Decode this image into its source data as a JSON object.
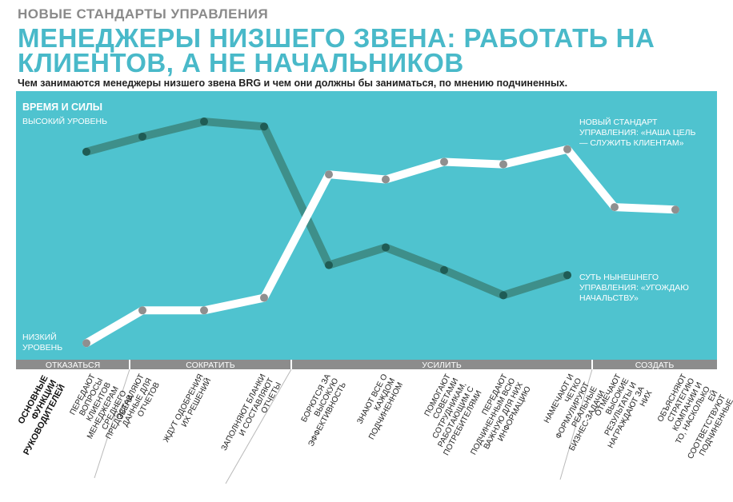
{
  "header": {
    "kicker": "НОВЫЕ СТАНДАРТЫ УПРАВЛЕНИЯ",
    "title": "МЕНЕДЖЕРЫ НИЗШЕГО ЗВЕНА: РАБОТАТЬ НА КЛИЕНТОВ, А НЕ НАЧАЛЬНИКОВ",
    "subtitle": "Чем занимаются менеджеры низшего звена BRG и чем они должны бы заниматься, по мнению подчиненных."
  },
  "colors": {
    "panel": "#4fc3cf",
    "current_line": "#3e8f8a",
    "current_dot": "#1f5c55",
    "new_line": "#ffffff",
    "new_dot": "#8f8f8f",
    "band": "#8c8c8c",
    "divider": "#b9b9b9"
  },
  "chart_data": {
    "type": "line",
    "y_axis_title": "ВРЕМЯ И СИЛЫ",
    "y_high_label": "ВЫСОКИЙ УРОВЕНЬ",
    "y_low_label": "НИЗКИЙ УРОВЕНЬ",
    "ylim": [
      0,
      100
    ],
    "grid": false,
    "x_axis_title": "ОСНОВНЫЕ ФУНКЦИИ РУКОВОДИТЕЛЕЙ",
    "categories": [
      "ПЕРЕДАЮТ ВОПРОСЫ КЛИЕНТОВ МЕНЕДЖЕРАМ СРЕДНЕГО ЗВЕНА",
      "ПРЕДОСТАВЛЯЮТ ДАННЫЕ ДЛЯ ОТЧЕТОВ",
      "ЖДУТ ОДОБРЕНИЯ ИХ РЕШЕНИЙ",
      "ЗАПОЛНЯЮТ БЛАНКИ И СОСТАВЛЯЮТ ОТЧЕТЫ",
      "БОРЮТСЯ ЗА ВЫСОКУЮ ЭФФЕКТИВНОСТЬ",
      "ЗНАЮТ ВСЕ О КАЖДОМ ПОДЧИНЕННОМ",
      "ПОМОГАЮТ СОВЕТАМИ СОТРУДНИКАМ, РАБОТАЮЩИМ С ПОТРЕБИТЕЛЯМИ",
      "ПЕРЕДАЮТ ПОДЧИНЕННЫМ ВСЮ ВАЖНУЮ ДЛЯ НИХ ИНФОРМАЦИЮ",
      "НАМЕЧАЮТ И ЧЕТКО ФОРМУЛИРУЮТ РЕАЛЬНЫЕ БИЗНЕС-ЗАДАЧИ",
      "ОТМЕЧАЮТ ВЫСОКИЕ РЕЗУЛЬТАТЫ И НАГРАЖДАЮТ ЗА НИХ",
      "ОБЪЯСНЯЮТ СТРАТЕГИЮ КОМПАНИИ И ТО, НАСКОЛЬКО ЕЙ СООТВЕТСТВУЮТ ПОДЧИНЕННЫЕ"
    ],
    "groups": [
      {
        "label": "ОТКАЗАТЬСЯ",
        "from": 0,
        "to": 1
      },
      {
        "label": "СОКРАТИТЬ",
        "from": 2,
        "to": 3
      },
      {
        "label": "УСИЛИТЬ",
        "from": 4,
        "to": 8
      },
      {
        "label": "СОЗДАТЬ",
        "from": 9,
        "to": 10
      }
    ],
    "series": [
      {
        "key": "current",
        "name": "СУТЬ НЫНЕШНЕГО УПРАВЛЕНИЯ: «УГОЖДАЮ НАЧАЛЬСТВУ»",
        "values": [
          81,
          87,
          93,
          91,
          36,
          43,
          34,
          24,
          32,
          null,
          null
        ]
      },
      {
        "key": "new",
        "name": "НОВЫЙ СТАНДАРТ УПРАВЛЕНИЯ: «НАША ЦЕЛЬ — СЛУЖИТЬ КЛИЕНТАМ»",
        "values": [
          5,
          18,
          18,
          23,
          72,
          70,
          77,
          76,
          82,
          59,
          58
        ]
      }
    ]
  }
}
